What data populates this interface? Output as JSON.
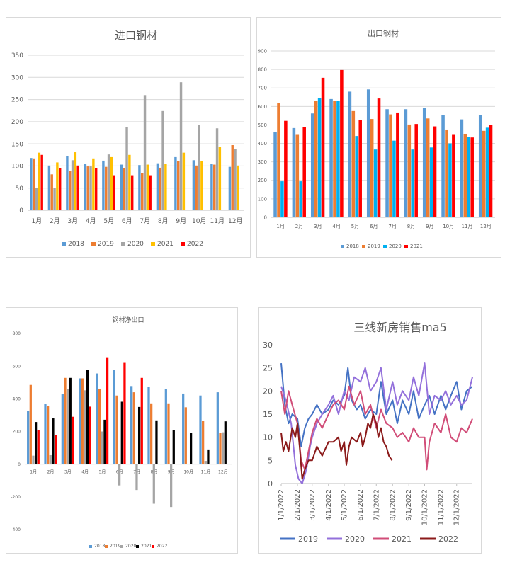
{
  "chart_data": [
    {
      "type": "bar",
      "title": "进口钢材",
      "categories": [
        "1月",
        "2月",
        "3月",
        "4月",
        "5月",
        "6月",
        "7月",
        "8月",
        "9月",
        "10月",
        "11月",
        "12月"
      ],
      "ylim": [
        0,
        350
      ],
      "yticks": [
        0,
        50,
        100,
        150,
        200,
        250,
        300,
        350
      ],
      "legend": "bottom",
      "grid": true,
      "series": [
        {
          "name": "2018",
          "color": "#5b9bd5",
          "values": [
            118,
            101,
            123,
            104,
            112,
            103,
            102,
            106,
            120,
            113,
            104,
            98
          ]
        },
        {
          "name": "2019",
          "color": "#ed7d31",
          "values": [
            117,
            81,
            89,
            99,
            98,
            95,
            84,
            96,
            111,
            101,
            103,
            147
          ]
        },
        {
          "name": "2020",
          "color": "#a5a5a5",
          "values": [
            51,
            51,
            113,
            99,
            126,
            188,
            260,
            224,
            289,
            193,
            185,
            138
          ]
        },
        {
          "name": "2021",
          "color": "#ffc000",
          "values": [
            130,
            108,
            131,
            117,
            120,
            125,
            103,
            104,
            130,
            111,
            143,
            101
          ]
        },
        {
          "name": "2022",
          "color": "#ff0000",
          "values": [
            125,
            95,
            101,
            95,
            79,
            79,
            79,
            null,
            null,
            null,
            null,
            null
          ]
        }
      ]
    },
    {
      "type": "bar",
      "title": "出口钢材",
      "categories": [
        "1月",
        "2月",
        "3月",
        "4月",
        "5月",
        "6月",
        "7月",
        "8月",
        "9月",
        "10月",
        "11月",
        "12月"
      ],
      "ylim": [
        0,
        900
      ],
      "yticks": [
        0,
        100,
        200,
        300,
        400,
        500,
        600,
        700,
        800,
        900
      ],
      "legend": "bottom",
      "grid": true,
      "series": [
        {
          "name": "2018",
          "color": "#5b9bd5",
          "values": [
            462,
            483,
            562,
            640,
            680,
            692,
            585,
            585,
            592,
            552,
            530,
            555
          ]
        },
        {
          "name": "2019",
          "color": "#ed7d31",
          "values": [
            618,
            450,
            630,
            630,
            575,
            532,
            557,
            502,
            535,
            475,
            452,
            468
          ]
        },
        {
          "name": "2020",
          "color": "#00b0f0",
          "values": [
            195,
            195,
            645,
            630,
            440,
            367,
            415,
            367,
            378,
            400,
            433,
            485
          ]
        },
        {
          "name": "2021",
          "color": "#ff0000",
          "values": [
            522,
            490,
            755,
            797,
            527,
            643,
            567,
            505,
            492,
            450,
            432,
            500
          ]
        }
      ]
    },
    {
      "type": "bar",
      "title": "钢材净出口",
      "categories": [
        "1月",
        "2月",
        "3月",
        "4月",
        "5月",
        "6月",
        "7月",
        "8月",
        "9月",
        "10月",
        "11月",
        "12月"
      ],
      "ylim": [
        -400,
        800
      ],
      "yticks": [
        -400,
        -200,
        0,
        200,
        400,
        600,
        800
      ],
      "legend": "bottom",
      "grid": false,
      "series": [
        {
          "name": "2018",
          "color": "#5b9bd5",
          "values": [
            325,
            370,
            430,
            525,
            555,
            578,
            478,
            472,
            458,
            432,
            420,
            440
          ]
        },
        {
          "name": "2019",
          "color": "#ed7d31",
          "values": [
            485,
            358,
            528,
            525,
            462,
            420,
            440,
            372,
            372,
            348,
            265,
            190
          ]
        },
        {
          "name": "2020",
          "color": "#a5a5a5",
          "values": [
            52,
            55,
            462,
            452,
            200,
            -130,
            -158,
            -242,
            -262,
            0,
            20,
            195
          ]
        },
        {
          "name": "2021",
          "color": "#000000",
          "values": [
            258,
            280,
            528,
            575,
            272,
            382,
            350,
            268,
            210,
            192,
            90,
            262
          ]
        },
        {
          "name": "2022",
          "color": "#ff0000",
          "values": [
            208,
            180,
            290,
            352,
            650,
            620,
            528,
            null,
            null,
            null,
            null,
            null
          ]
        }
      ]
    },
    {
      "type": "line",
      "title": "三线新房销售ma5",
      "ylim": [
        0,
        30
      ],
      "yticks": [
        0,
        5,
        10,
        15,
        20,
        25,
        30
      ],
      "xticks": [
        "1/1/2022",
        "2/1/2022",
        "3/1/2022",
        "4/1/2022",
        "5/1/2022",
        "6/1/2022",
        "7/1/2022",
        "8/1/2022",
        "9/1/2022",
        "10/1/2022",
        "11/1/2022",
        "12/1/2022"
      ],
      "xlim": [
        "1/1/2022",
        "12/31/2022"
      ],
      "legend": "bottom",
      "grid": false,
      "series": [
        {
          "name": "2019",
          "color": "#4472c4",
          "points": [
            [
              "1/1",
              26
            ],
            [
              "1/8",
              17
            ],
            [
              "1/15",
              13
            ],
            [
              "1/22",
              15
            ],
            [
              "2/1",
              14
            ],
            [
              "2/8",
              8
            ],
            [
              "2/15",
              12
            ],
            [
              "2/22",
              14
            ],
            [
              "3/1",
              15
            ],
            [
              "3/10",
              17
            ],
            [
              "3/20",
              15
            ],
            [
              "4/1",
              16
            ],
            [
              "4/10",
              18
            ],
            [
              "4/20",
              17
            ],
            [
              "5/1",
              19
            ],
            [
              "5/8",
              25
            ],
            [
              "5/15",
              18
            ],
            [
              "5/25",
              16
            ],
            [
              "6/1",
              17
            ],
            [
              "6/10",
              14
            ],
            [
              "6/20",
              16
            ],
            [
              "7/1",
              15
            ],
            [
              "7/10",
              22
            ],
            [
              "7/20",
              15
            ],
            [
              "8/1",
              18
            ],
            [
              "8/10",
              13
            ],
            [
              "8/20",
              18
            ],
            [
              "9/1",
              15
            ],
            [
              "9/10",
              20
            ],
            [
              "9/20",
              14
            ],
            [
              "10/1",
              17
            ],
            [
              "10/10",
              19
            ],
            [
              "10/20",
              15
            ],
            [
              "11/1",
              19
            ],
            [
              "11/10",
              16
            ],
            [
              "11/20",
              19
            ],
            [
              "12/1",
              22
            ],
            [
              "12/10",
              16
            ],
            [
              "12/20",
              20
            ],
            [
              "12/31",
              21
            ]
          ]
        },
        {
          "name": "2020",
          "color": "#9370db",
          "points": [
            [
              "1/1",
              21
            ],
            [
              "1/10",
              18
            ],
            [
              "1/20",
              13
            ],
            [
              "1/28",
              4
            ],
            [
              "2/3",
              1
            ],
            [
              "2/10",
              0
            ],
            [
              "2/18",
              3
            ],
            [
              "2/25",
              8
            ],
            [
              "3/1",
              10
            ],
            [
              "3/10",
              13
            ],
            [
              "3/20",
              15
            ],
            [
              "4/1",
              17
            ],
            [
              "4/10",
              19
            ],
            [
              "4/20",
              15
            ],
            [
              "5/1",
              20
            ],
            [
              "5/10",
              18
            ],
            [
              "5/20",
              23
            ],
            [
              "6/1",
              22
            ],
            [
              "6/10",
              25
            ],
            [
              "6/20",
              20
            ],
            [
              "7/1",
              22
            ],
            [
              "7/10",
              25
            ],
            [
              "7/20",
              16
            ],
            [
              "8/1",
              22
            ],
            [
              "8/10",
              17
            ],
            [
              "8/20",
              20
            ],
            [
              "9/1",
              18
            ],
            [
              "9/10",
              23
            ],
            [
              "9/20",
              19
            ],
            [
              "10/1",
              26
            ],
            [
              "10/10",
              15
            ],
            [
              "10/20",
              19
            ],
            [
              "11/1",
              18
            ],
            [
              "11/10",
              20
            ],
            [
              "11/20",
              17
            ],
            [
              "12/1",
              19
            ],
            [
              "12/10",
              17
            ],
            [
              "12/20",
              18
            ],
            [
              "12/31",
              23
            ]
          ]
        },
        {
          "name": "2021",
          "color": "#d14d78",
          "points": [
            [
              "1/1",
              20
            ],
            [
              "1/8",
              15
            ],
            [
              "1/15",
              20
            ],
            [
              "1/22",
              17
            ],
            [
              "2/1",
              13
            ],
            [
              "2/8",
              5
            ],
            [
              "2/15",
              3
            ],
            [
              "2/22",
              7
            ],
            [
              "3/1",
              11
            ],
            [
              "3/10",
              14
            ],
            [
              "3/20",
              12
            ],
            [
              "4/1",
              15
            ],
            [
              "4/10",
              17
            ],
            [
              "4/20",
              18
            ],
            [
              "5/1",
              16
            ],
            [
              "5/10",
              21
            ],
            [
              "5/20",
              17
            ],
            [
              "6/1",
              20
            ],
            [
              "6/10",
              15
            ],
            [
              "6/20",
              17
            ],
            [
              "7/1",
              12
            ],
            [
              "7/10",
              16
            ],
            [
              "7/20",
              13
            ],
            [
              "8/1",
              12
            ],
            [
              "8/10",
              10
            ],
            [
              "8/20",
              11
            ],
            [
              "9/1",
              9
            ],
            [
              "9/10",
              12
            ],
            [
              "9/20",
              10
            ],
            [
              "10/1",
              10
            ],
            [
              "10/5",
              3
            ],
            [
              "10/10",
              9
            ],
            [
              "10/20",
              13
            ],
            [
              "11/1",
              11
            ],
            [
              "11/10",
              15
            ],
            [
              "11/20",
              10
            ],
            [
              "12/1",
              9
            ],
            [
              "12/10",
              12
            ],
            [
              "12/20",
              11
            ],
            [
              "12/31",
              14
            ]
          ]
        },
        {
          "name": "2022",
          "color": "#8b1a1a",
          "points": [
            [
              "1/1",
              11
            ],
            [
              "1/5",
              7
            ],
            [
              "1/10",
              9
            ],
            [
              "1/15",
              7
            ],
            [
              "1/22",
              12
            ],
            [
              "1/28",
              10
            ],
            [
              "2/1",
              13
            ],
            [
              "2/5",
              8
            ],
            [
              "2/10",
              1
            ],
            [
              "2/15",
              3
            ],
            [
              "2/22",
              5
            ],
            [
              "3/1",
              5
            ],
            [
              "3/10",
              8
            ],
            [
              "3/20",
              6
            ],
            [
              "4/1",
              9
            ],
            [
              "4/10",
              9
            ],
            [
              "4/20",
              10
            ],
            [
              "4/25",
              7
            ],
            [
              "5/1",
              9
            ],
            [
              "5/5",
              4
            ],
            [
              "5/10",
              8
            ],
            [
              "5/15",
              10
            ],
            [
              "5/25",
              9
            ],
            [
              "6/1",
              11
            ],
            [
              "6/5",
              8
            ],
            [
              "6/10",
              10
            ],
            [
              "6/15",
              13
            ],
            [
              "6/20",
              12
            ],
            [
              "6/25",
              15
            ],
            [
              "7/1",
              13
            ],
            [
              "7/5",
              10
            ],
            [
              "7/10",
              12
            ],
            [
              "7/15",
              9
            ],
            [
              "7/20",
              8
            ],
            [
              "7/25",
              6
            ],
            [
              "7/31",
              5
            ]
          ]
        }
      ]
    }
  ]
}
